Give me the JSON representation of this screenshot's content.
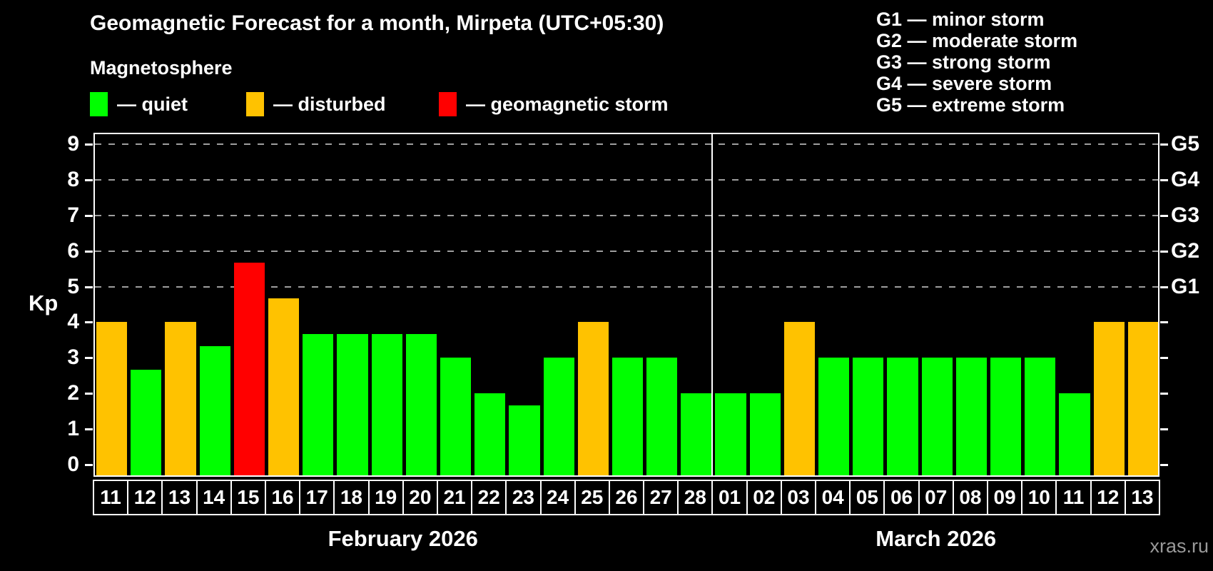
{
  "header": {
    "title": "Geomagnetic Forecast for a month, Mirpeta (UTC+05:30)",
    "subtitle": "Magnetosphere",
    "legend": [
      {
        "label": "— quiet",
        "status": "quiet"
      },
      {
        "label": "— disturbed",
        "status": "disturbed"
      },
      {
        "label": "— geomagnetic storm",
        "status": "storm"
      }
    ],
    "g_legend": [
      "G1 — minor storm",
      "G2 — moderate storm",
      "G3 — strong storm",
      "G4 — severe storm",
      "G5 — extreme storm"
    ]
  },
  "chart_data": {
    "type": "bar",
    "title": "Geomagnetic Forecast for a month, Mirpeta (UTC+05:30)",
    "ylabel": "Kp",
    "ylim": [
      0,
      9
    ],
    "yticks": [
      0,
      1,
      2,
      3,
      4,
      5,
      6,
      7,
      8,
      9
    ],
    "gridline_values": [
      5,
      6,
      7,
      8,
      9
    ],
    "grid": "dashed, only at storm levels G1-G5",
    "legend_position": "top-left",
    "right_axis": [
      {
        "label": "G1",
        "value": 5
      },
      {
        "label": "G2",
        "value": 6
      },
      {
        "label": "G3",
        "value": 7
      },
      {
        "label": "G4",
        "value": 8
      },
      {
        "label": "G5",
        "value": 9
      }
    ],
    "months": [
      {
        "label": "February 2026",
        "days": [
          {
            "day": "11",
            "kp": 4.0,
            "status": "disturbed"
          },
          {
            "day": "12",
            "kp": 2.67,
            "status": "quiet"
          },
          {
            "day": "13",
            "kp": 4.0,
            "status": "disturbed"
          },
          {
            "day": "14",
            "kp": 3.33,
            "status": "quiet"
          },
          {
            "day": "15",
            "kp": 5.67,
            "status": "storm"
          },
          {
            "day": "16",
            "kp": 4.67,
            "status": "disturbed"
          },
          {
            "day": "17",
            "kp": 3.67,
            "status": "quiet"
          },
          {
            "day": "18",
            "kp": 3.67,
            "status": "quiet"
          },
          {
            "day": "19",
            "kp": 3.67,
            "status": "quiet"
          },
          {
            "day": "20",
            "kp": 3.67,
            "status": "quiet"
          },
          {
            "day": "21",
            "kp": 3.0,
            "status": "quiet"
          },
          {
            "day": "22",
            "kp": 2.0,
            "status": "quiet"
          },
          {
            "day": "23",
            "kp": 1.67,
            "status": "quiet"
          },
          {
            "day": "24",
            "kp": 3.0,
            "status": "quiet"
          },
          {
            "day": "25",
            "kp": 4.0,
            "status": "disturbed"
          },
          {
            "day": "26",
            "kp": 3.0,
            "status": "quiet"
          },
          {
            "day": "27",
            "kp": 3.0,
            "status": "quiet"
          },
          {
            "day": "28",
            "kp": 2.0,
            "status": "quiet"
          }
        ]
      },
      {
        "label": "March 2026",
        "days": [
          {
            "day": "01",
            "kp": 2.0,
            "status": "quiet"
          },
          {
            "day": "02",
            "kp": 2.0,
            "status": "quiet"
          },
          {
            "day": "03",
            "kp": 4.0,
            "status": "disturbed"
          },
          {
            "day": "04",
            "kp": 3.0,
            "status": "quiet"
          },
          {
            "day": "05",
            "kp": 3.0,
            "status": "quiet"
          },
          {
            "day": "06",
            "kp": 3.0,
            "status": "quiet"
          },
          {
            "day": "07",
            "kp": 3.0,
            "status": "quiet"
          },
          {
            "day": "08",
            "kp": 3.0,
            "status": "quiet"
          },
          {
            "day": "09",
            "kp": 3.0,
            "status": "quiet"
          },
          {
            "day": "10",
            "kp": 3.0,
            "status": "quiet"
          },
          {
            "day": "11",
            "kp": 2.0,
            "status": "quiet"
          },
          {
            "day": "12",
            "kp": 4.0,
            "status": "disturbed"
          },
          {
            "day": "13",
            "kp": 4.0,
            "status": "disturbed"
          }
        ]
      }
    ]
  },
  "colors": {
    "quiet": "#00ff00",
    "disturbed": "#ffc200",
    "storm": "#ff0000",
    "axis": "#ffffff",
    "grid": "#9e9e9e",
    "background": "#000000",
    "watermark": "#999999"
  },
  "watermark": "xras.ru"
}
